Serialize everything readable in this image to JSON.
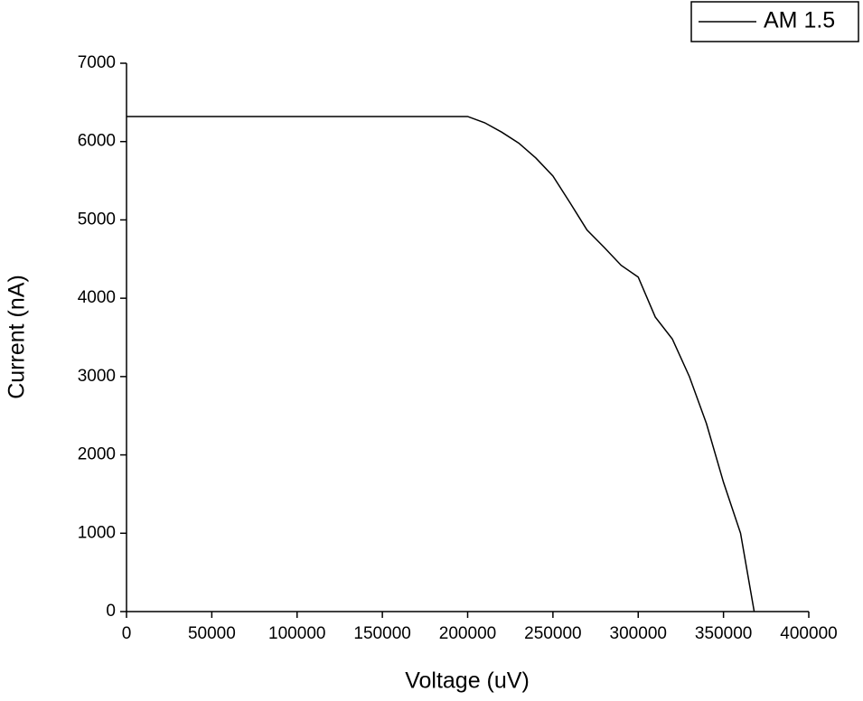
{
  "chart_data": {
    "type": "line",
    "x_label": "Voltage (uV)",
    "y_label": "Current (nA)",
    "x": [
      0,
      200000,
      210000,
      220000,
      230000,
      240000,
      250000,
      260000,
      270000,
      280000,
      290000,
      300000,
      310000,
      320000,
      330000,
      340000,
      350000,
      360000,
      368000
    ],
    "series": [
      {
        "name": "AM 1.5",
        "color": "#000000",
        "values": [
          6320,
          6320,
          6240,
          6120,
          5980,
          5790,
          5560,
          5220,
          4870,
          4650,
          4420,
          4270,
          3760,
          3480,
          3000,
          2400,
          1650,
          1000,
          0
        ]
      }
    ],
    "xlim": [
      0,
      400000
    ],
    "xticks": [
      0,
      50000,
      100000,
      150000,
      200000,
      250000,
      300000,
      350000,
      400000
    ],
    "ylim": [
      0,
      7000
    ],
    "yticks": [
      0,
      1000,
      2000,
      3000,
      4000,
      5000,
      6000,
      7000
    ],
    "legend": "top-right"
  }
}
